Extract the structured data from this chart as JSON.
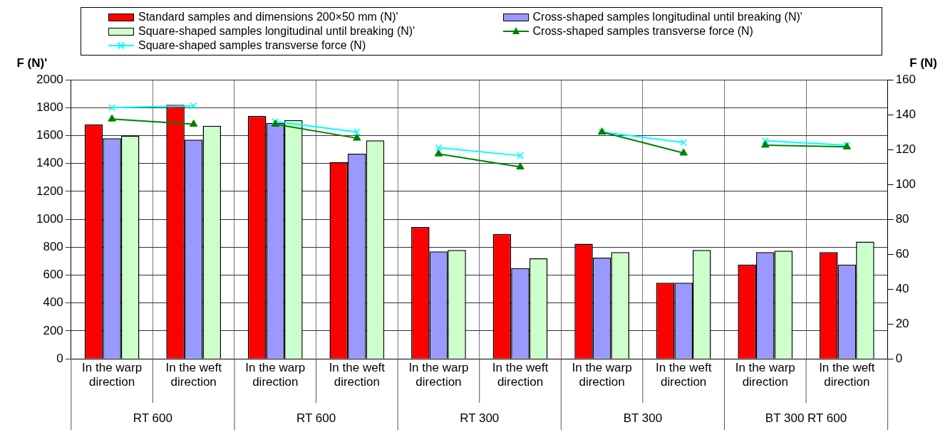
{
  "chart_data": {
    "type": "bar",
    "ylabel": "F (N)'",
    "y2label": "F (N)",
    "categories": [
      "In the warp direction",
      "In the weft direction",
      "In the warp direction",
      "In the weft direction",
      "In the warp direction",
      "In the weft direction",
      "In the warp direction",
      "In the weft direction",
      "In the warp direction",
      "In the weft direction"
    ],
    "annotations": [
      "RT 600",
      "RT 600",
      "RT 300",
      "BT 300",
      "BT 300 RT 600"
    ],
    "series": [
      {
        "name": "Standard samples and dimensions 200×50 mm (N)'",
        "color": "#ff0000",
        "values": [
          1680,
          1820,
          1740,
          1410,
          945,
          895,
          825,
          545,
          675,
          765
        ]
      },
      {
        "name": "Cross-shaped samples longitudinal until breaking (N)'",
        "color": "#9999ff",
        "values": [
          1580,
          1570,
          1690,
          1470,
          770,
          650,
          725,
          545,
          765,
          675
        ]
      },
      {
        "name": "Square-shaped samples longitudinal until breaking (N)'",
        "color": "#ccffcc",
        "values": [
          1600,
          1670,
          1710,
          1565,
          780,
          720,
          765,
          780,
          775,
          840
        ]
      },
      {
        "name": "Cross-shaped samples transverse force (N)",
        "type": "line",
        "axis": "y2",
        "marker": "triangle",
        "color": "#008000",
        "values": [
          137.5,
          134.5,
          134.5,
          126.5,
          117.5,
          110,
          130,
          118,
          122.5,
          121.5
        ]
      },
      {
        "name": "Square-shaped samples transverse force (N)",
        "type": "line",
        "axis": "y2",
        "marker": "cross",
        "color": "#00ffff",
        "values": [
          144,
          145,
          136,
          130,
          121,
          116.5,
          130,
          124,
          125,
          122.5
        ]
      }
    ],
    "ylim": [
      0,
      2000
    ],
    "yticks": [
      0,
      200,
      400,
      600,
      800,
      1000,
      1200,
      1400,
      1600,
      1800,
      2000
    ],
    "y2lim": [
      0,
      160
    ],
    "y2ticks": [
      0,
      20,
      40,
      60,
      80,
      100,
      120,
      140,
      160
    ],
    "grid": true,
    "legend": "top"
  }
}
